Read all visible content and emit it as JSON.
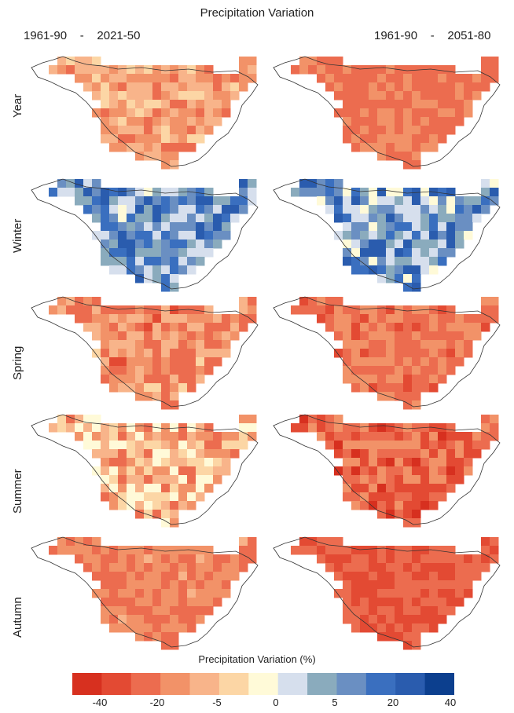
{
  "title": "Precipitation Variation",
  "columns": [
    {
      "start": "1961-90",
      "sep": "-",
      "end": "2021-50"
    },
    {
      "start": "1961-90",
      "sep": "-",
      "end": "2051-80"
    }
  ],
  "rows": [
    "Year",
    "Winter",
    "Spring",
    "Summer",
    "Autumn"
  ],
  "legend": {
    "title": "Precipitation Variation (%)",
    "colors": [
      "#d7301f",
      "#e34a33",
      "#ec6c4f",
      "#f29268",
      "#f8b48a",
      "#fcd6a5",
      "#fffad8",
      "#d6dfed",
      "#8aabbd",
      "#6a8fc2",
      "#3a6fbf",
      "#2a5cae",
      "#0c3f8e"
    ],
    "tick_labels": [
      "-40",
      "-20",
      "-5",
      "0",
      "5",
      "20",
      "40"
    ]
  },
  "panels": {
    "year_2021_50": "orange-light mix, predominantly -10 to -20",
    "year_2051_80": "uniform orange, -15 to -25"
  }
}
